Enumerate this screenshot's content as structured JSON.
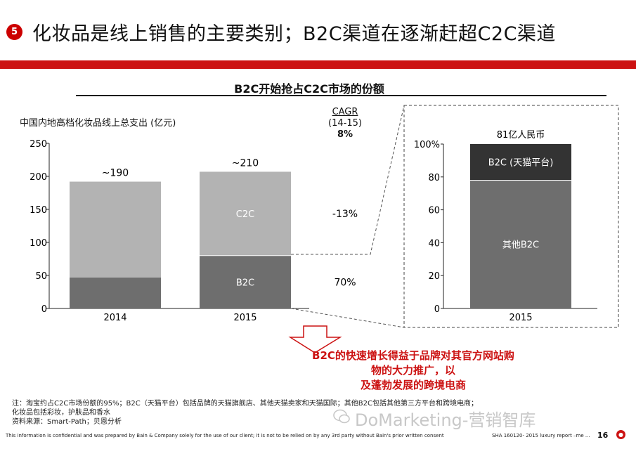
{
  "slide": {
    "badge": "5",
    "title": "化妆品是线上销售的主要类别；B2C渠道在逐渐赶超C2C渠道",
    "subtitle": "B2C开始抢占C2C市场的份额",
    "note_lines": [
      "B2C的快速增长得益于品牌对其官方网站购物的大力推广，以",
      "及蓬勃发展的跨境电商"
    ],
    "footnotes": [
      "注：淘宝约占C2C市场份额的95%；B2C（天猫平台）包括品牌的天猫旗舰店、其他天猫卖家和天猫国际；其他B2C包括其他第三方平台和跨境电商；",
      "化妆品包括彩妆，护肤品和香水",
      "资料来源：Smart-Path；贝恩分析"
    ],
    "footer": "This information is confidential and was prepared by Bain & Company solely for the use of our client; it is not to be relied on by any 3rd party without Bain's prior written consent",
    "footer_right": "SHA     160120- 2015 luxury report –me ...",
    "page_number": "16",
    "watermark": "DoMarketing-营销智库"
  },
  "chart_data": [
    {
      "type": "bar",
      "stacked": true,
      "ylabel": "中国内地高档化妆品线上总支出 (亿元)",
      "ylim": [
        0,
        250
      ],
      "yticks": [
        "0",
        "50",
        "100",
        "150",
        "200",
        "250"
      ],
      "categories": [
        "2014",
        "2015"
      ],
      "series": [
        {
          "name": "B2C",
          "values": [
            47,
            80
          ],
          "color": "#6e6e6e"
        },
        {
          "name": "C2C",
          "values": [
            145,
            127
          ],
          "color": "#b3b3b3"
        }
      ],
      "totals": [
        "~190",
        "~210"
      ],
      "cagr": {
        "label": "CAGR",
        "period": "(14-15)",
        "total": "8%",
        "c2c": "-13%",
        "b2c": "70%"
      }
    },
    {
      "type": "bar",
      "stacked": true,
      "ylim": [
        0,
        100
      ],
      "yticks": [
        "0",
        "20",
        "40",
        "60",
        "80",
        "100%"
      ],
      "categories": [
        "2015"
      ],
      "total": "81亿人民币",
      "series": [
        {
          "name": "其他B2C",
          "values": [
            78
          ],
          "color": "#6e6e6e"
        },
        {
          "name": "B2C (天猫平台)",
          "values": [
            22
          ],
          "color": "#333333"
        }
      ]
    }
  ]
}
